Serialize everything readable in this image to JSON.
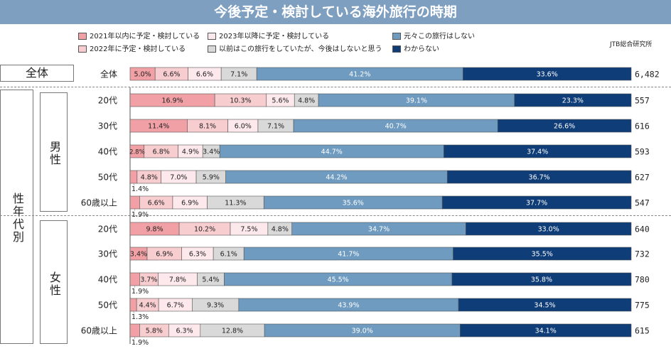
{
  "title": "今後予定・検討している海外旅行の時期",
  "source": "JTB総合研究所",
  "colors": {
    "title_bg": "#7f9fc1",
    "c2021": "#f1a1a5",
    "c2022": "#f8cdd0",
    "c2023": "#fde8eb",
    "cPrev": "#d9d9d9",
    "cNone": "#6e9bbf",
    "cUnknown": "#0f3d78"
  },
  "groups": {
    "overall": "全体",
    "by_gender_age": "性年代別",
    "male": "男性",
    "female": "女性"
  },
  "chart_data": {
    "type": "bar",
    "orientation": "horizontal",
    "stacked": true,
    "percent": true,
    "categories": [
      "全体",
      "20代",
      "30代",
      "40代",
      "50代",
      "60歳以上",
      "20代",
      "30代",
      "40代",
      "50代",
      "60歳以上"
    ],
    "category_groups": [
      "全体",
      "男性",
      "男性",
      "男性",
      "男性",
      "男性",
      "女性",
      "女性",
      "女性",
      "女性",
      "女性"
    ],
    "sample_sizes": [
      "6,482",
      "557",
      "616",
      "593",
      "627",
      "547",
      "640",
      "732",
      "780",
      "775",
      "615"
    ],
    "series": [
      {
        "name": "2021年以内に予定・検討している",
        "values": [
          5.0,
          16.9,
          11.4,
          2.8,
          1.4,
          1.9,
          9.8,
          3.4,
          1.9,
          1.3,
          1.9
        ]
      },
      {
        "name": "2022年に予定・検討している",
        "values": [
          6.6,
          10.3,
          8.1,
          6.8,
          4.8,
          6.6,
          10.2,
          6.9,
          3.7,
          4.4,
          5.8
        ]
      },
      {
        "name": "2023年以降に予定・検討している",
        "values": [
          6.6,
          5.6,
          6.0,
          4.9,
          7.0,
          6.9,
          7.5,
          6.3,
          7.8,
          6.7,
          6.3
        ]
      },
      {
        "name": "以前はこの旅行をしていたが、今後はしないと思う",
        "values": [
          7.1,
          4.8,
          7.1,
          3.4,
          5.9,
          11.3,
          4.8,
          6.1,
          5.4,
          9.3,
          12.8
        ]
      },
      {
        "name": "元々この旅行はしない",
        "values": [
          41.2,
          39.1,
          40.7,
          44.7,
          44.2,
          35.6,
          34.7,
          41.7,
          45.5,
          43.9,
          39.0
        ]
      },
      {
        "name": "わからない",
        "values": [
          33.6,
          23.3,
          26.6,
          37.4,
          36.7,
          37.7,
          33.0,
          35.5,
          35.8,
          34.5,
          34.1
        ]
      }
    ],
    "xlim": [
      0,
      100
    ],
    "legend_position": "top"
  }
}
